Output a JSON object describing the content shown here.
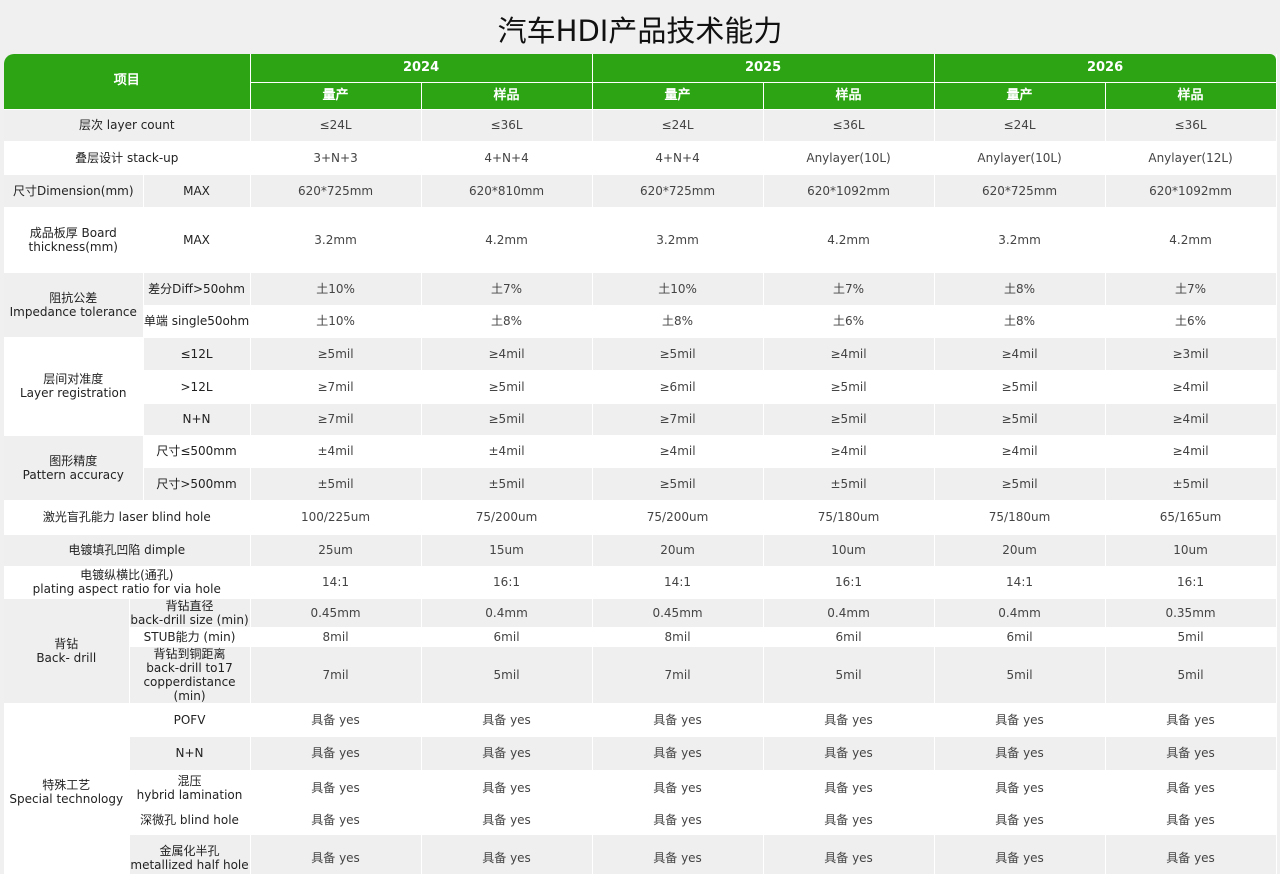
{
  "title": "汽车HDI产品技术能力",
  "header": {
    "item_label": "项目",
    "years": [
      "2024",
      "2025",
      "2026"
    ],
    "sub_labels": [
      "量产",
      "样品"
    ]
  },
  "colors": {
    "header_green": "#2ca414",
    "row_gray": "#efefef",
    "row_white": "#ffffff"
  },
  "groups": [
    {
      "label": "层次  layer count",
      "rows": [
        {
          "values": [
            "≤24L",
            "≤36L",
            "≤24L",
            "≤36L",
            "≤24L",
            "≤36L"
          ]
        }
      ]
    },
    {
      "label": "叠层设计 stack-up",
      "rows": [
        {
          "values": [
            "3+N+3",
            "4+N+4",
            "4+N+4",
            "Anylayer(10L)",
            "Anylayer(10L)",
            "Anylayer(12L)"
          ]
        }
      ]
    },
    {
      "label": "尺寸Dimension(mm)",
      "rows": [
        {
          "sub": "MAX",
          "values": [
            "620*725mm",
            "620*810mm",
            "620*725mm",
            "620*1092mm",
            "620*725mm",
            "620*1092mm"
          ]
        }
      ]
    },
    {
      "label": "成品板厚 Board thickness(mm)",
      "rows": [
        {
          "sub": "MAX",
          "values": [
            "3.2mm",
            "4.2mm",
            "3.2mm",
            "4.2mm",
            "3.2mm",
            "4.2mm"
          ]
        }
      ]
    },
    {
      "label": "阻抗公差\nImpedance tolerance",
      "rows": [
        {
          "sub": "差分Diff>50ohm",
          "values": [
            "土10%",
            "土7%",
            "土10%",
            "土7%",
            "土8%",
            "土7%"
          ]
        },
        {
          "sub": "单端 single50ohm",
          "values": [
            "土10%",
            "土8%",
            "土8%",
            "土6%",
            "土8%",
            "土6%"
          ]
        }
      ]
    },
    {
      "label": "层间对准度\nLayer registration",
      "rows": [
        {
          "sub": "≤12L",
          "values": [
            "≥5mil",
            "≥4mil",
            "≥5mil",
            "≥4mil",
            "≥4mil",
            "≥3mil"
          ]
        },
        {
          "sub": ">12L",
          "values": [
            "≥7mil",
            "≥5mil",
            "≥6mil",
            "≥5mil",
            "≥5mil",
            "≥4mil"
          ]
        },
        {
          "sub": "N+N",
          "values": [
            "≥7mil",
            "≥5mil",
            "≥7mil",
            "≥5mil",
            "≥5mil",
            "≥4mil"
          ]
        }
      ]
    },
    {
      "label": "图形精度\nPattern accuracy",
      "rows": [
        {
          "sub": "尺寸≤500mm",
          "values": [
            "±4mil",
            "±4mil",
            "≥4mil",
            "≥4mil",
            "≥4mil",
            "≥4mil"
          ]
        },
        {
          "sub": "尺寸>500mm",
          "values": [
            "±5mil",
            "±5mil",
            "≥5mil",
            "±5mil",
            "≥5mil",
            "±5mil"
          ]
        }
      ]
    },
    {
      "label": "激光盲孔能力 laser blind hole",
      "rows": [
        {
          "values": [
            "100/225um",
            "75/200um",
            "75/200um",
            "75/180um",
            "75/180um",
            "65/165um"
          ]
        }
      ]
    },
    {
      "label": "电镀填孔凹陷 dimple",
      "rows": [
        {
          "values": [
            "25um",
            "15um",
            "20um",
            "10um",
            "20um",
            "10um"
          ]
        }
      ]
    },
    {
      "label": "电镀纵横比(通孔)\nplating aspect ratio for via hole",
      "rows": [
        {
          "values": [
            "14:1",
            "16:1",
            "14:1",
            "16:1",
            "14:1",
            "16:1"
          ]
        }
      ]
    },
    {
      "label": "背钻\nBack- drill",
      "rows": [
        {
          "sub": "背钻直径\nback-drill size (min)",
          "values": [
            "0.45mm",
            "0.4mm",
            "0.45mm",
            "0.4mm",
            "0.4mm",
            "0.35mm"
          ]
        },
        {
          "sub": "STUB能力 (min)",
          "values": [
            "8mil",
            "6mil",
            "8mil",
            "6mil",
            "6mil",
            "5mil"
          ]
        },
        {
          "sub": "背钻到铜距离\nback-drill to17\ncopperdistance (min)",
          "values": [
            "7mil",
            "5mil",
            "7mil",
            "5mil",
            "5mil",
            "5mil"
          ]
        }
      ]
    },
    {
      "label": "特殊工艺\nSpecial  technology",
      "rows": [
        {
          "sub": "POFV",
          "values": [
            "具备 yes",
            "具备 yes",
            "具备 yes",
            "具备 yes",
            "具备 yes",
            "具备 yes"
          ]
        },
        {
          "sub": "N+N",
          "values": [
            "具备 yes",
            "具备 yes",
            "具备 yes",
            "具备 yes",
            "具备 yes",
            "具备 yes"
          ]
        },
        {
          "sub": "混压\nhybrid lamination",
          "values": [
            "具备 yes",
            "具备 yes",
            "具备 yes",
            "具备 yes",
            "具备 yes",
            "具备 yes"
          ]
        },
        {
          "sub": "深微孔 blind hole",
          "values": [
            "具备 yes",
            "具备 yes",
            "具备 yes",
            "具备 yes",
            "具备 yes",
            "具备 yes"
          ]
        },
        {
          "sub": "金属化半孔\nmetallized half hole",
          "values": [
            "具备 yes",
            "具备 yes",
            "具备 yes",
            "具备 yes",
            "具备 yes",
            "具备 yes"
          ]
        }
      ]
    }
  ]
}
